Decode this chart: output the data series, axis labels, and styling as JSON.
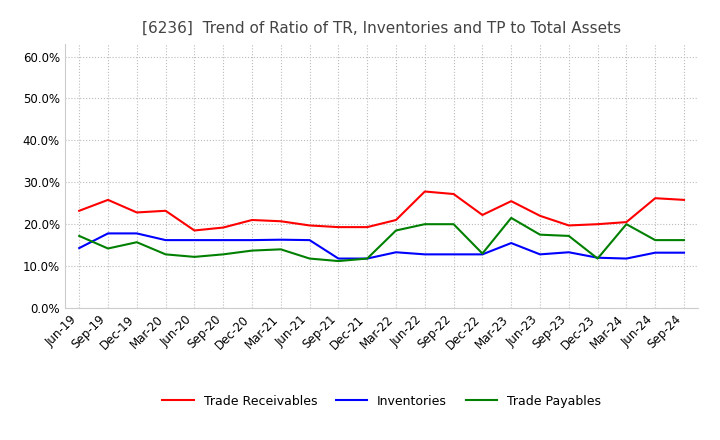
{
  "title": "[6236]  Trend of Ratio of TR, Inventories and TP to Total Assets",
  "labels": [
    "Jun-19",
    "Sep-19",
    "Dec-19",
    "Mar-20",
    "Jun-20",
    "Sep-20",
    "Dec-20",
    "Mar-21",
    "Jun-21",
    "Sep-21",
    "Dec-21",
    "Mar-22",
    "Jun-22",
    "Sep-22",
    "Dec-22",
    "Mar-23",
    "Jun-23",
    "Sep-23",
    "Dec-23",
    "Mar-24",
    "Jun-24",
    "Sep-24"
  ],
  "trade_receivables": [
    0.232,
    0.258,
    0.228,
    0.232,
    0.185,
    0.192,
    0.21,
    0.207,
    0.197,
    0.193,
    0.193,
    0.21,
    0.278,
    0.272,
    0.222,
    0.255,
    0.22,
    0.197,
    0.2,
    0.205,
    0.262,
    0.258
  ],
  "inventories": [
    0.143,
    0.178,
    0.178,
    0.162,
    0.162,
    0.162,
    0.162,
    0.163,
    0.162,
    0.118,
    0.118,
    0.133,
    0.128,
    0.128,
    0.128,
    0.155,
    0.128,
    0.133,
    0.12,
    0.118,
    0.132,
    0.132
  ],
  "trade_payables": [
    0.172,
    0.142,
    0.157,
    0.128,
    0.122,
    0.128,
    0.137,
    0.14,
    0.118,
    0.112,
    0.118,
    0.185,
    0.2,
    0.2,
    0.13,
    0.215,
    0.175,
    0.172,
    0.118,
    0.2,
    0.162,
    0.162
  ],
  "tr_color": "#ff0000",
  "inv_color": "#0000ff",
  "tp_color": "#008000",
  "ylim": [
    0.0,
    0.63
  ],
  "yticks": [
    0.0,
    0.1,
    0.2,
    0.3,
    0.4,
    0.5,
    0.6
  ],
  "background_color": "#ffffff",
  "grid_color": "#bbbbbb",
  "title_fontsize": 11,
  "tick_fontsize": 8.5
}
